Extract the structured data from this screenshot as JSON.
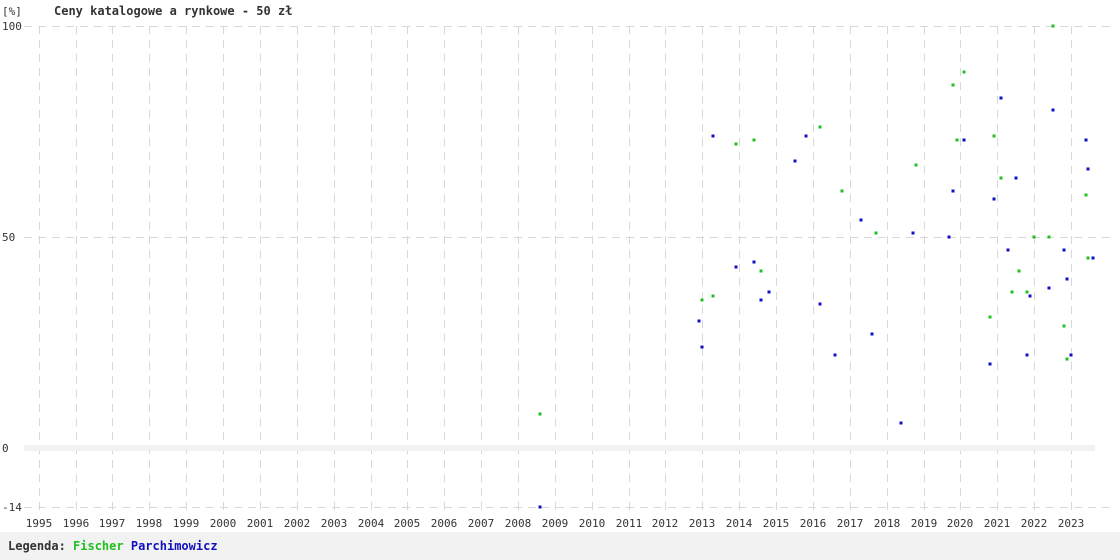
{
  "chart_data": {
    "type": "scatter",
    "title": "Ceny katalogowe a rynkowe - 50 zł",
    "ylabel": "[%]",
    "xlabel": "",
    "ylim": [
      -14,
      100
    ],
    "xlim": [
      1994.6,
      2023.65
    ],
    "y_ticks": [
      100,
      50,
      0,
      -14
    ],
    "x_tick_labels": [
      "1995",
      "1996",
      "1997",
      "1998",
      "1999",
      "2000",
      "2001",
      "2002",
      "2003",
      "2004",
      "2005",
      "2006",
      "2007",
      "2008",
      "2009",
      "2010",
      "2011",
      "2012",
      "2013",
      "2014",
      "2015",
      "2016",
      "2017",
      "2018",
      "2019",
      "2020",
      "2021",
      "2022",
      "2023"
    ],
    "zero_line": 0,
    "grid": true,
    "series": [
      {
        "name": "Fischer",
        "color": "#20c020",
        "points": [
          [
            2008.6,
            8
          ],
          [
            2012.9,
            30
          ],
          [
            2013.0,
            35
          ],
          [
            2013.3,
            36
          ],
          [
            2013.9,
            72
          ],
          [
            2014.4,
            73
          ],
          [
            2014.6,
            42
          ],
          [
            2014.8,
            37
          ],
          [
            2015.5,
            68
          ],
          [
            2015.8,
            74
          ],
          [
            2016.2,
            76
          ],
          [
            2016.8,
            61
          ],
          [
            2017.3,
            54
          ],
          [
            2017.7,
            51
          ],
          [
            2018.4,
            6
          ],
          [
            2018.8,
            67
          ],
          [
            2019.8,
            86
          ],
          [
            2019.9,
            73
          ],
          [
            2020.1,
            89
          ],
          [
            2020.8,
            31
          ],
          [
            2020.9,
            74
          ],
          [
            2021.1,
            64
          ],
          [
            2021.4,
            37
          ],
          [
            2021.6,
            42
          ],
          [
            2021.8,
            37
          ],
          [
            2022.0,
            50
          ],
          [
            2022.4,
            50
          ],
          [
            2022.5,
            100
          ],
          [
            2022.8,
            29
          ],
          [
            2022.9,
            21
          ],
          [
            2023.0,
            22
          ],
          [
            2023.4,
            60
          ],
          [
            2023.45,
            45
          ]
        ]
      },
      {
        "name": "Parchimowicz",
        "color": "#1010c0",
        "points": [
          [
            2008.6,
            -14
          ],
          [
            2012.9,
            30
          ],
          [
            2013.0,
            24
          ],
          [
            2013.3,
            74
          ],
          [
            2013.9,
            43
          ],
          [
            2014.4,
            44
          ],
          [
            2014.6,
            35
          ],
          [
            2014.8,
            37
          ],
          [
            2015.5,
            68
          ],
          [
            2015.8,
            74
          ],
          [
            2016.2,
            34
          ],
          [
            2016.6,
            22
          ],
          [
            2017.3,
            54
          ],
          [
            2017.6,
            27
          ],
          [
            2018.4,
            6
          ],
          [
            2018.7,
            51
          ],
          [
            2019.7,
            50
          ],
          [
            2019.8,
            61
          ],
          [
            2020.1,
            73
          ],
          [
            2020.8,
            20
          ],
          [
            2020.9,
            59
          ],
          [
            2021.1,
            83
          ],
          [
            2021.3,
            47
          ],
          [
            2021.5,
            64
          ],
          [
            2021.8,
            22
          ],
          [
            2021.9,
            36
          ],
          [
            2022.4,
            38
          ],
          [
            2022.5,
            80
          ],
          [
            2022.8,
            47
          ],
          [
            2022.9,
            40
          ],
          [
            2023.0,
            22
          ],
          [
            2023.4,
            73
          ],
          [
            2023.45,
            66
          ],
          [
            2023.6,
            45
          ]
        ]
      }
    ]
  },
  "legend": {
    "prefix": "Legenda:",
    "entries": [
      "Fischer",
      "Parchimowicz"
    ]
  }
}
